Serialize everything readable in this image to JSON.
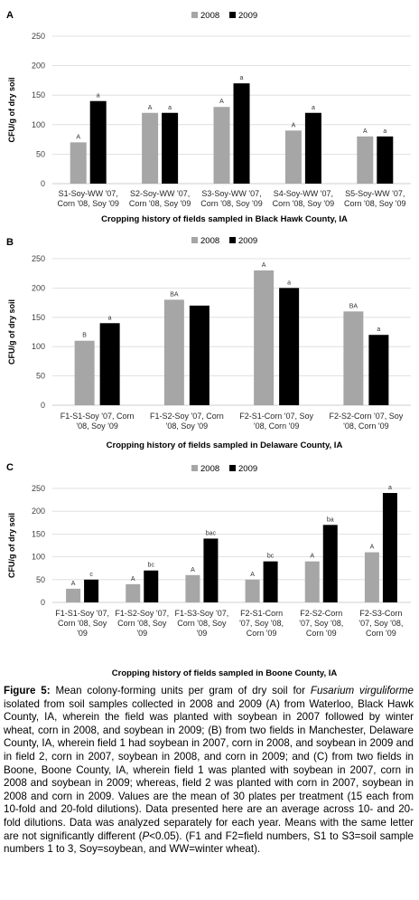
{
  "chart_data": [
    {
      "panel": "A",
      "type": "bar",
      "ylabel": "CFU/g of dry soil",
      "xlabel": "Cropping history of fields sampled in Black Hawk County, IA",
      "ylim": [
        0,
        250
      ],
      "yticks": [
        0,
        50,
        100,
        150,
        200,
        250
      ],
      "legend_position": "top-center",
      "grid": true,
      "categories": [
        [
          "S1-Soy-WW '07,",
          "Corn '08, Soy '09"
        ],
        [
          "S2-Soy-WW '07,",
          "Corn '08, Soy '09"
        ],
        [
          "S3-Soy-WW '07,",
          "Corn '08, Soy '09"
        ],
        [
          "S4-Soy-WW '07,",
          "Corn '08, Soy '09"
        ],
        [
          "S5-Soy-WW '07,",
          "Corn '08, Soy '09"
        ]
      ],
      "series": [
        {
          "name": "2008",
          "color": "#a6a6a6",
          "values": [
            70,
            120,
            130,
            90,
            80
          ],
          "labels": [
            "A",
            "A",
            "A",
            "A",
            "A"
          ]
        },
        {
          "name": "2009",
          "color": "#000000",
          "values": [
            140,
            120,
            170,
            120,
            80
          ],
          "labels": [
            "a",
            "a",
            "a",
            "a",
            "a"
          ]
        }
      ]
    },
    {
      "panel": "B",
      "type": "bar",
      "ylabel": "CFU/g of dry soil",
      "xlabel": "Cropping history of fields sampled in Delaware County, IA",
      "ylim": [
        0,
        250
      ],
      "yticks": [
        0,
        50,
        100,
        150,
        200,
        250
      ],
      "legend_position": "top-center",
      "grid": true,
      "categories": [
        [
          "F1-S1-Soy '07, Corn",
          "'08, Soy '09"
        ],
        [
          "F1-S2-Soy '07, Corn",
          "'08, Soy '09"
        ],
        [
          "F2-S1-Corn '07, Soy",
          "'08, Corn '09"
        ],
        [
          "F2-S2-Corn '07, Soy",
          "'08, Corn '09"
        ]
      ],
      "series": [
        {
          "name": "2008",
          "color": "#a6a6a6",
          "values": [
            110,
            180,
            230,
            160
          ],
          "labels": [
            "B",
            "BA",
            "A",
            "BA"
          ]
        },
        {
          "name": "2009",
          "color": "#000000",
          "values": [
            140,
            170,
            200,
            120
          ],
          "labels": [
            "a",
            "",
            "a",
            "a"
          ]
        }
      ]
    },
    {
      "panel": "C",
      "type": "bar",
      "ylabel": "CFU/g of dry soil",
      "xlabel": "Cropping history of fields sampled in Boone County, IA",
      "ylim": [
        0,
        250
      ],
      "yticks": [
        0,
        50,
        100,
        150,
        200,
        250
      ],
      "legend_position": "top-center",
      "grid": true,
      "categories": [
        [
          "F1-S1-Soy '07,",
          "Corn '08, Soy",
          "'09"
        ],
        [
          "F1-S2-Soy '07,",
          "Corn '08, Soy",
          "'09"
        ],
        [
          "F1-S3-Soy '07,",
          "Corn '08, Soy",
          "'09"
        ],
        [
          "F2-S1-Corn",
          "'07, Soy '08,",
          "Corn '09"
        ],
        [
          "F2-S2-Corn",
          "'07, Soy '08,",
          "Corn '09"
        ],
        [
          "F2-S3-Corn",
          "'07, Soy '08,",
          "Corn '09"
        ]
      ],
      "series": [
        {
          "name": "2008",
          "color": "#a6a6a6",
          "values": [
            30,
            40,
            60,
            50,
            90,
            110
          ],
          "labels": [
            "A",
            "A",
            "A",
            "A",
            "A",
            "A"
          ]
        },
        {
          "name": "2009",
          "color": "#000000",
          "values": [
            50,
            70,
            140,
            90,
            170,
            240
          ],
          "labels": [
            "c",
            "bc",
            "bac",
            "bc",
            "ba",
            "a"
          ]
        }
      ]
    }
  ],
  "caption": {
    "figure_label": "Figure 5:",
    "text": "Mean colony-forming units per gram of dry soil for Fusarium virguliforme isolated from soil samples collected in 2008 and 2009 (A) from Waterloo, Black Hawk County, IA, wherein the field was planted with soybean in 2007 followed by winter wheat, corn in 2008, and soybean in 2009; (B) from two fields in Manchester, Delaware County, IA, wherein field 1 had soybean in 2007, corn in 2008, and soybean in 2009 and in field 2, corn in 2007, soybean in 2008, and corn in 2009; and (C) from two fields in Boone, Boone County, IA, wherein field 1 was planted with soybean in 2007, corn in 2008 and soybean in 2009; whereas, field 2 was planted with corn in 2007, soybean in 2008 and corn in 2009. Values are the mean of 30 plates per treatment (15 each from 10-fold and 20-fold dilutions). Data presented here are an average across 10- and 20-fold dilutions. Data was analyzed separately for each year. Means with the same letter are not significantly different (P<0.05). (F1 and F2=field numbers, S1 to S3=soil sample numbers 1 to 3, Soy=soybean, and WW=winter wheat)."
  }
}
